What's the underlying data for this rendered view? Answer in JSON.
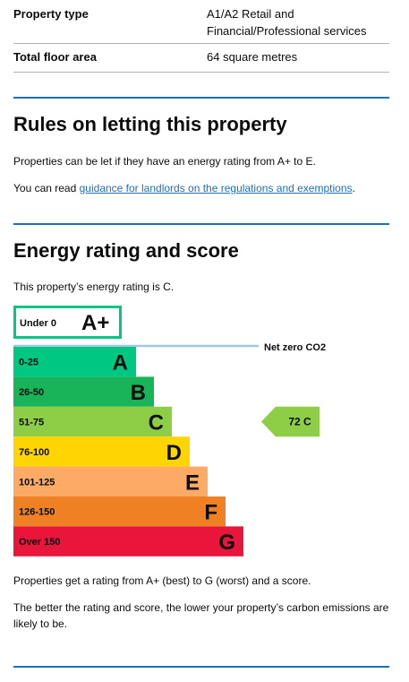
{
  "summary": [
    {
      "key": "Property type",
      "value": "A1/A2 Retail and Financial/Professional services"
    },
    {
      "key": "Total floor area",
      "value": "64 square metres"
    }
  ],
  "rules": {
    "heading": "Rules on letting this property",
    "text": "Properties can be let if they have an energy rating from A+ to E.",
    "read_prefix": "You can read ",
    "link": "guidance for landlords on the regulations and exemptions",
    "read_suffix": "."
  },
  "energy": {
    "heading": "Energy rating and score",
    "intro": "This property’s energy rating is C.",
    "aplus": {
      "range": "Under 0",
      "letter": "A+",
      "border_color": "#00c781"
    },
    "net_zero_label": "Net zero CO2",
    "bands": [
      {
        "range": "0-25",
        "letter": "A",
        "color": "#00c781"
      },
      {
        "range": "26-50",
        "letter": "B",
        "color": "#19b459"
      },
      {
        "range": "51-75",
        "letter": "C",
        "color": "#8dce46"
      },
      {
        "range": "76-100",
        "letter": "D",
        "color": "#ffd500"
      },
      {
        "range": "101-125",
        "letter": "E",
        "color": "#fcaa65"
      },
      {
        "range": "126-150",
        "letter": "F",
        "color": "#ef8023"
      },
      {
        "range": "Over 150",
        "letter": "G",
        "color": "#e9153b"
      }
    ],
    "current": {
      "score": "72",
      "letter": "C",
      "band_index": 2,
      "color": "#8dce46"
    },
    "explain1": "Properties get a rating from A+ (best) to G (worst) and a score.",
    "explain2": "The better the rating and score, the lower your property’s carbon emissions are likely to be."
  }
}
